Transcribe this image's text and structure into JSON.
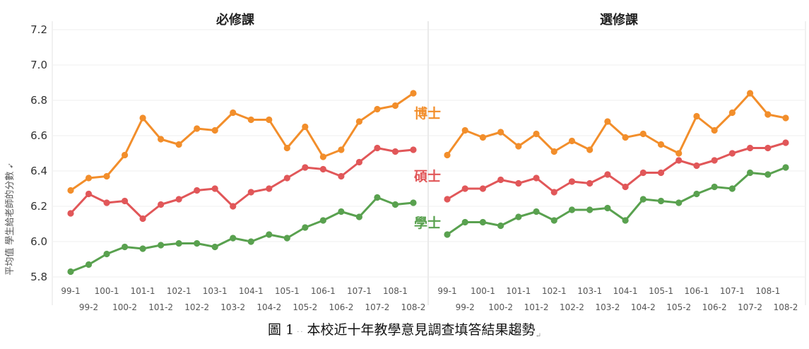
{
  "caption": {
    "label": "圖 1",
    "text": "本校近十年教學意見調查填答結果趨勢",
    "mark": "↵"
  },
  "ylabel": "平均值 學生給老師的分數",
  "chart_data": [
    {
      "type": "line",
      "title": "必修課",
      "categories": [
        "99-1",
        "99-2",
        "100-1",
        "100-2",
        "101-1",
        "101-2",
        "102-1",
        "102-2",
        "103-1",
        "103-2",
        "104-1",
        "104-2",
        "105-1",
        "105-2",
        "106-1",
        "106-2",
        "107-1",
        "107-2",
        "108-1",
        "108-2"
      ],
      "ylim": [
        5.78,
        7.25
      ],
      "yticks": [
        5.8,
        6.0,
        6.2,
        6.4,
        6.6,
        6.8,
        7.0,
        7.2
      ],
      "series": [
        {
          "name": "博士",
          "color": "#f28e2b",
          "values": [
            6.29,
            6.36,
            6.37,
            6.49,
            6.7,
            6.58,
            6.55,
            6.64,
            6.63,
            6.73,
            6.69,
            6.69,
            6.53,
            6.65,
            6.48,
            6.52,
            6.68,
            6.75,
            6.77,
            6.84
          ]
        },
        {
          "name": "碩士",
          "color": "#e15759",
          "values": [
            6.16,
            6.27,
            6.22,
            6.23,
            6.13,
            6.21,
            6.24,
            6.29,
            6.3,
            6.2,
            6.28,
            6.3,
            6.36,
            6.42,
            6.41,
            6.37,
            6.45,
            6.53,
            6.51,
            6.52
          ]
        },
        {
          "name": "學士",
          "color": "#59a14f",
          "values": [
            5.83,
            5.87,
            5.93,
            5.97,
            5.96,
            5.98,
            5.99,
            5.99,
            5.97,
            6.02,
            6.0,
            6.04,
            6.02,
            6.08,
            6.12,
            6.17,
            6.14,
            6.25,
            6.21,
            6.22
          ]
        }
      ]
    },
    {
      "type": "line",
      "title": "選修課",
      "categories": [
        "99-1",
        "99-2",
        "100-1",
        "100-2",
        "101-1",
        "101-2",
        "102-1",
        "102-2",
        "103-1",
        "103-2",
        "104-1",
        "104-2",
        "105-1",
        "105-2",
        "106-1",
        "106-2",
        "107-1",
        "107-2",
        "108-1",
        "108-2"
      ],
      "ylim": [
        5.78,
        7.25
      ],
      "yticks": [
        5.8,
        6.0,
        6.2,
        6.4,
        6.6,
        6.8,
        7.0,
        7.2
      ],
      "series": [
        {
          "name": "博士",
          "color": "#f28e2b",
          "values": [
            6.49,
            6.63,
            6.59,
            6.62,
            6.54,
            6.61,
            6.51,
            6.57,
            6.52,
            6.68,
            6.59,
            6.61,
            6.55,
            6.5,
            6.71,
            6.63,
            6.73,
            6.84,
            6.72,
            6.7
          ]
        },
        {
          "name": "碩士",
          "color": "#e15759",
          "values": [
            6.24,
            6.3,
            6.3,
            6.35,
            6.33,
            6.36,
            6.28,
            6.34,
            6.33,
            6.38,
            6.31,
            6.39,
            6.39,
            6.46,
            6.43,
            6.46,
            6.5,
            6.53,
            6.53,
            6.56
          ]
        },
        {
          "name": "學士",
          "color": "#59a14f",
          "values": [
            6.04,
            6.11,
            6.11,
            6.09,
            6.14,
            6.17,
            6.12,
            6.18,
            6.18,
            6.19,
            6.12,
            6.24,
            6.23,
            6.22,
            6.27,
            6.31,
            6.3,
            6.39,
            6.38,
            6.42
          ]
        }
      ]
    }
  ]
}
